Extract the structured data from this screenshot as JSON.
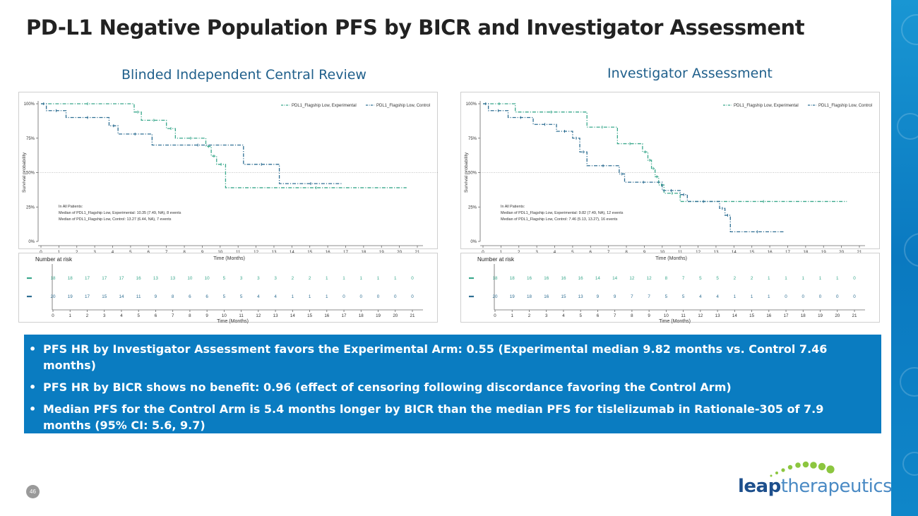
{
  "title": "PD-L1 Negative Population PFS by BICR and Investigator Assessment",
  "page_number": "46",
  "logo": {
    "leap": "leap",
    "therapeutics": "therapeutics"
  },
  "bullets": [
    "PFS HR by Investigator Assessment favors the Experimental Arm: 0.55 (Experimental median 9.82 months vs. Control 7.46 months)",
    "PFS HR by BICR shows no benefit: 0.96 (effect of censoring following discordance favoring the Control Arm)",
    "Median PFS for the Control Arm is 5.4 months longer by BICR than the median PFS for tislelizumab in Rationale-305 of 7.9 months (95% CI: 5.6, 9.7)"
  ],
  "colors": {
    "accent": "#0a7cc1",
    "exp_line": "#3aa88c",
    "ctl_line": "#2f6f93"
  },
  "chart_data": [
    {
      "type": "line",
      "title": "Blinded Independent Central Review",
      "xlabel": "Time (Months)",
      "ylabel": "Survival probability",
      "xlim": [
        0,
        21
      ],
      "ylim": [
        0,
        1
      ],
      "y_ticks": [
        "0%",
        "25%",
        "50%",
        "75%",
        "100%"
      ],
      "x_ticks": [
        "0",
        "1",
        "2",
        "3",
        "4",
        "5",
        "6",
        "7",
        "8",
        "9",
        "10",
        "11",
        "12",
        "13",
        "14",
        "15",
        "16",
        "17",
        "18",
        "19",
        "20",
        "21"
      ],
      "legend": [
        "PDL1_Flagship Low, Experimental",
        "PDL1_Flagship Low, Control"
      ],
      "annotation": [
        "In All Patients:",
        "Median of PDL1_Flagship Low, Experimental: 10.35 (7.49, NA), 8 events",
        "Median of PDL1_Flagship Low, Control: 13.27 (6.44, NA), 7 events"
      ],
      "series": [
        {
          "name": "Experimental",
          "x": [
            0,
            5.2,
            5.6,
            7.0,
            7.5,
            9.2,
            9.5,
            9.8,
            10.3,
            20.4
          ],
          "y": [
            1.0,
            0.94,
            0.88,
            0.82,
            0.75,
            0.69,
            0.62,
            0.56,
            0.39,
            0.39
          ]
        },
        {
          "name": "Control",
          "x": [
            0,
            0.3,
            1.4,
            3.8,
            4.3,
            6.2,
            11.3,
            13.3,
            16.8
          ],
          "y": [
            1.0,
            0.95,
            0.9,
            0.84,
            0.78,
            0.7,
            0.56,
            0.42,
            0.42
          ]
        }
      ],
      "risk_table": {
        "label": "Number at risk",
        "xlabel": "Time (Months)",
        "rows": [
          [
            "18",
            "18",
            "17",
            "17",
            "17",
            "16",
            "13",
            "13",
            "10",
            "10",
            "5",
            "3",
            "3",
            "3",
            "2",
            "2",
            "1",
            "1",
            "1",
            "1",
            "1",
            "0"
          ],
          [
            "20",
            "19",
            "17",
            "15",
            "14",
            "11",
            "9",
            "8",
            "6",
            "6",
            "5",
            "5",
            "4",
            "4",
            "1",
            "1",
            "1",
            "0",
            "0",
            "0",
            "0",
            "0"
          ]
        ]
      }
    },
    {
      "type": "line",
      "title": "Investigator Assessment",
      "xlabel": "Time (Months)",
      "ylabel": "Survival probability",
      "xlim": [
        0,
        21
      ],
      "ylim": [
        0,
        1
      ],
      "y_ticks": [
        "0%",
        "25%",
        "50%",
        "75%",
        "100%"
      ],
      "x_ticks": [
        "0",
        "1",
        "2",
        "3",
        "4",
        "5",
        "6",
        "7",
        "8",
        "9",
        "10",
        "11",
        "12",
        "13",
        "14",
        "15",
        "16",
        "17",
        "18",
        "19",
        "20",
        "21"
      ],
      "legend": [
        "PDL1_Flagship Low, Experimental",
        "PDL1_Flagship Low, Control"
      ],
      "annotation": [
        "In All Patients:",
        "Median of PDL1_Flagship Low, Experimental: 9.82 (7.49, NA), 12 events",
        "Median of PDL1_Flagship Low, Control: 7.46 (5.13, 13.27), 16 events"
      ],
      "series": [
        {
          "name": "Experimental",
          "x": [
            0,
            1.8,
            5.8,
            7.5,
            8.9,
            9.2,
            9.4,
            9.6,
            9.8,
            10.1,
            11.0,
            20.3
          ],
          "y": [
            1.0,
            0.94,
            0.83,
            0.71,
            0.65,
            0.59,
            0.53,
            0.47,
            0.41,
            0.35,
            0.29,
            0.29
          ]
        },
        {
          "name": "Control",
          "x": [
            0,
            0.3,
            1.4,
            2.8,
            4.1,
            5.0,
            5.4,
            5.8,
            7.6,
            7.9,
            10.0,
            11.0,
            11.4,
            13.2,
            13.5,
            13.8,
            16.8
          ],
          "y": [
            1.0,
            0.95,
            0.9,
            0.85,
            0.8,
            0.75,
            0.65,
            0.55,
            0.49,
            0.43,
            0.37,
            0.34,
            0.29,
            0.24,
            0.19,
            0.07,
            0.07
          ]
        }
      ],
      "risk_table": {
        "label": "Number at risk",
        "xlabel": "Time (Months)",
        "rows": [
          [
            "18",
            "18",
            "16",
            "16",
            "16",
            "16",
            "14",
            "14",
            "12",
            "12",
            "8",
            "7",
            "5",
            "5",
            "2",
            "2",
            "1",
            "1",
            "1",
            "1",
            "1",
            "0"
          ],
          [
            "20",
            "19",
            "18",
            "16",
            "15",
            "13",
            "9",
            "9",
            "7",
            "7",
            "5",
            "5",
            "4",
            "4",
            "1",
            "1",
            "1",
            "0",
            "0",
            "0",
            "0",
            "0"
          ]
        ]
      }
    }
  ]
}
